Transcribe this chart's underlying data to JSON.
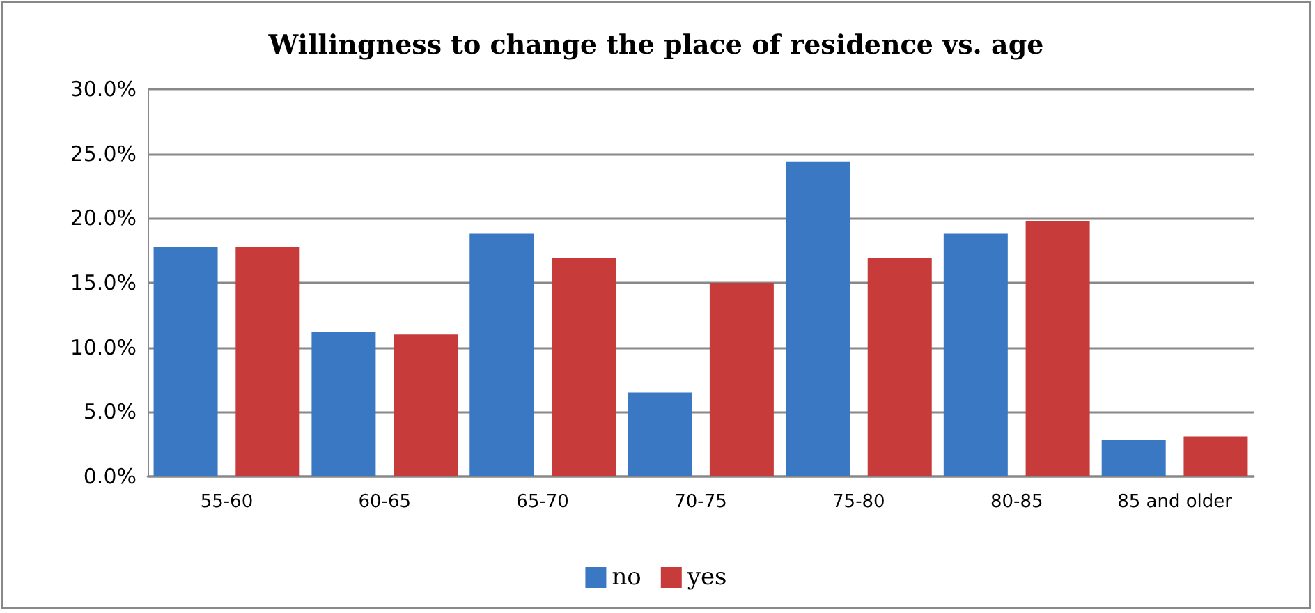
{
  "chart_data": {
    "type": "bar",
    "title": "Willingness to change the place of residence vs. age",
    "categories": [
      "55-60",
      "60-65",
      "65-70",
      "70-75",
      "75-80",
      "80-85",
      "85 and older"
    ],
    "series": [
      {
        "name": "no",
        "color": "#3a78c4",
        "values": [
          17.8,
          11.2,
          18.8,
          6.5,
          24.4,
          18.8,
          2.8
        ]
      },
      {
        "name": "yes",
        "color": "#c83b3b",
        "values": [
          17.8,
          11.0,
          16.9,
          15.0,
          16.9,
          19.8,
          3.1
        ]
      }
    ],
    "ylim": [
      0,
      30
    ],
    "yticks": [
      {
        "value": 0,
        "label": "0.0%"
      },
      {
        "value": 5,
        "label": "5.0%"
      },
      {
        "value": 10,
        "label": "10.0%"
      },
      {
        "value": 15,
        "label": "15.0%"
      },
      {
        "value": 20,
        "label": "20.0%"
      },
      {
        "value": 25,
        "label": "25.0%"
      },
      {
        "value": 30,
        "label": "30.0%"
      }
    ],
    "grid": "y",
    "legend": "bottom"
  }
}
